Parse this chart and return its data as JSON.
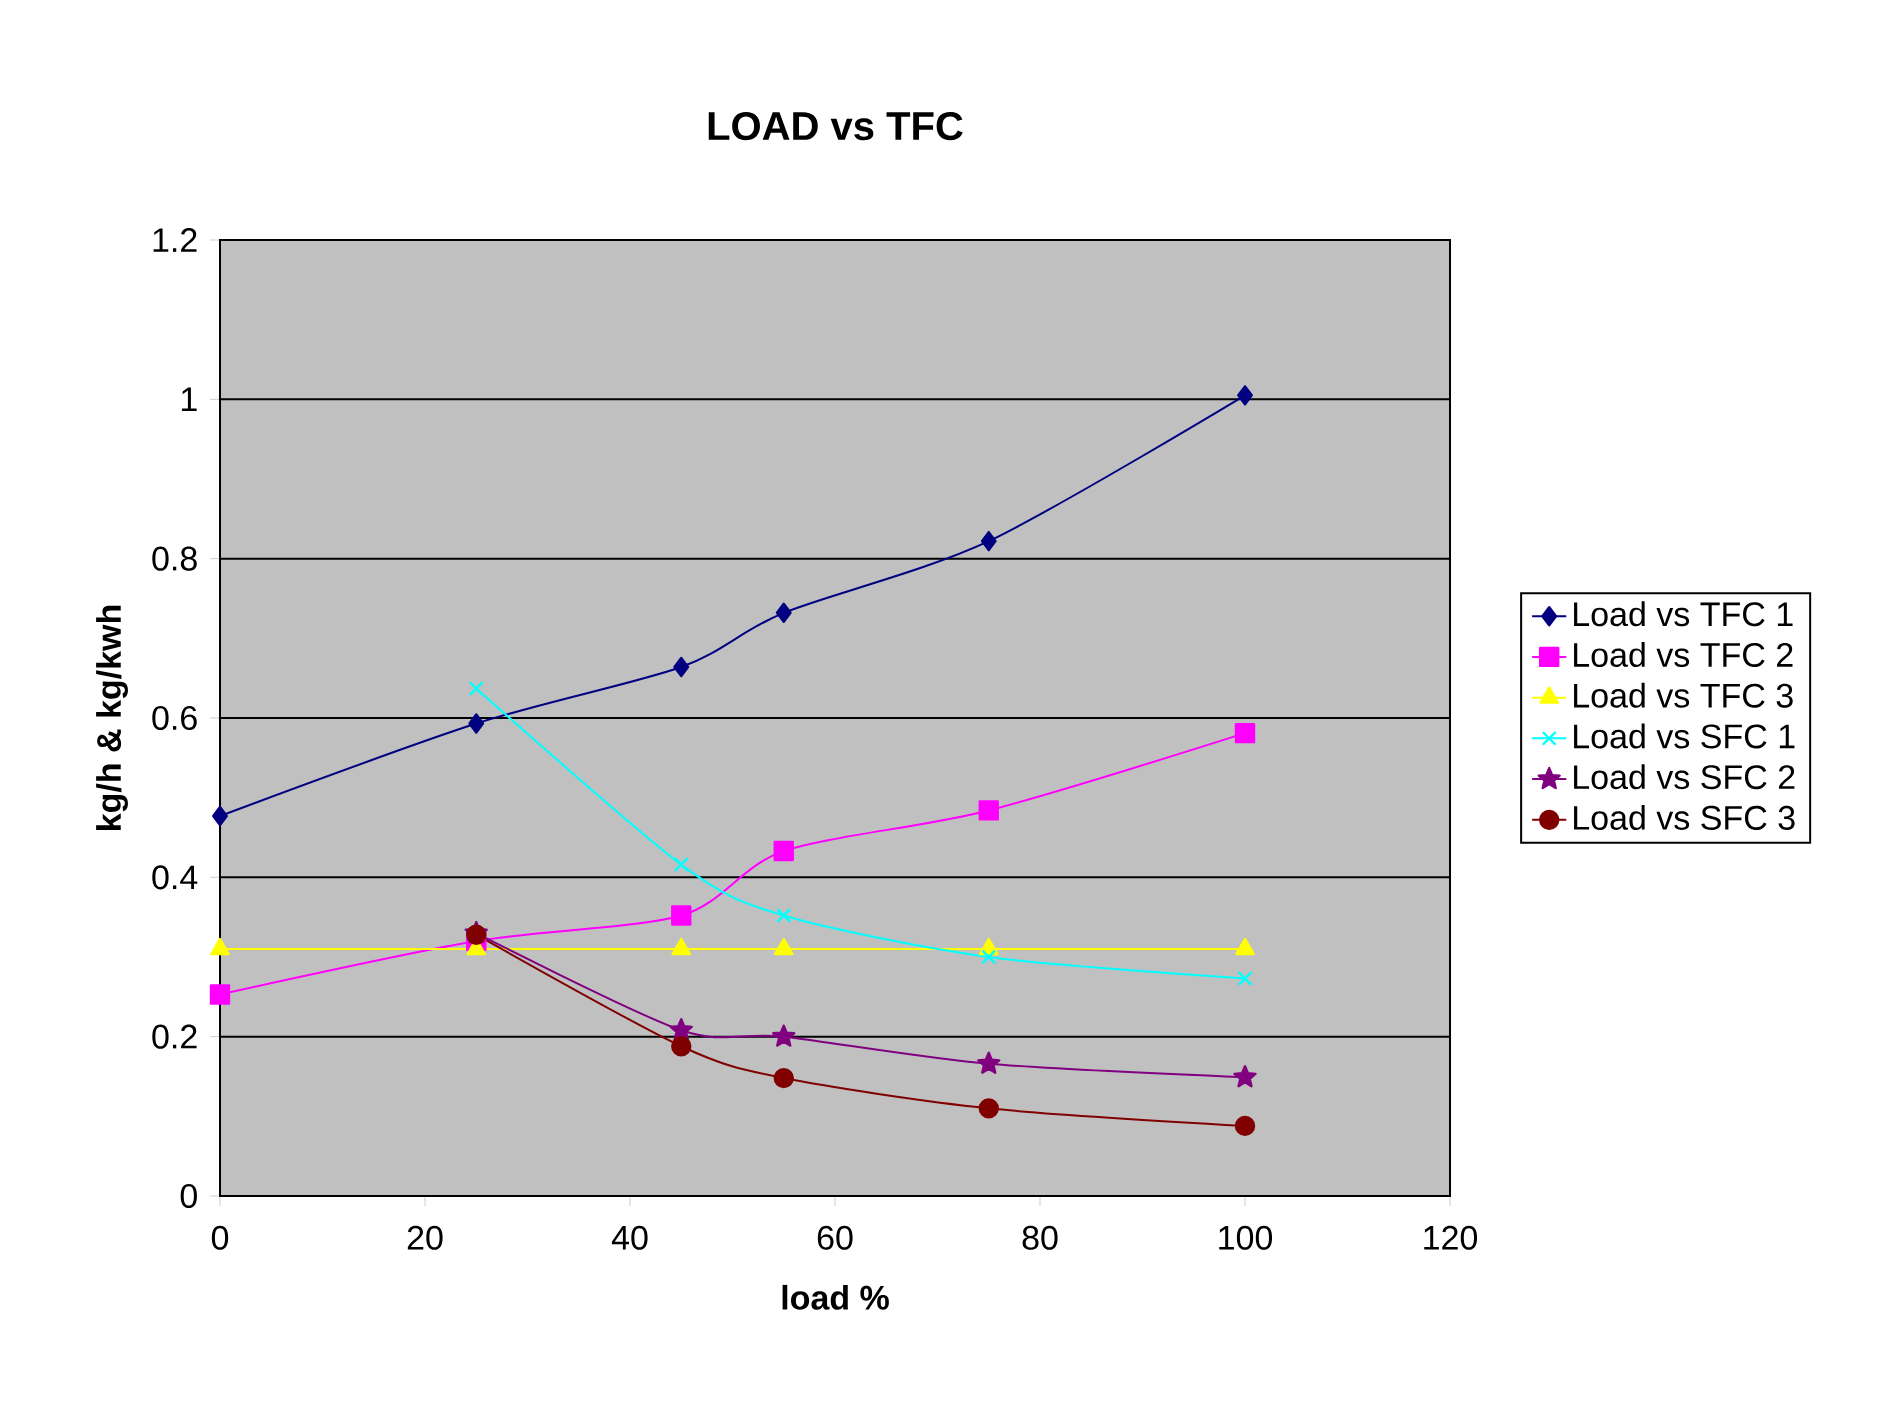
{
  "chart_data": {
    "type": "line",
    "title": "LOAD vs TFC",
    "xlabel": "load %",
    "ylabel": "kg/h & kg/kwh",
    "x": [
      0,
      25,
      45,
      55,
      75,
      100
    ],
    "series": [
      {
        "name": "Load vs TFC 1",
        "color": "#000080",
        "marker": "diamond",
        "values": [
          0.477,
          0.593,
          0.664,
          0.732,
          0.822,
          1.005
        ]
      },
      {
        "name": "Load vs TFC 2",
        "color": "#ff00ff",
        "marker": "square",
        "values": [
          0.253,
          0.32,
          0.352,
          0.433,
          0.484,
          0.581
        ]
      },
      {
        "name": "Load vs TFC 3",
        "color": "#ffff00",
        "marker": "triangle",
        "values": [
          0.31,
          0.31,
          0.31,
          0.31,
          0.31,
          0.31
        ]
      },
      {
        "name": "Load vs SFC 1",
        "color": "#00ffff",
        "marker": "cross",
        "x": [
          25,
          45,
          55,
          75,
          100
        ],
        "values": [
          0.637,
          0.416,
          0.352,
          0.3,
          0.273
        ]
      },
      {
        "name": "Load vs SFC 2",
        "color": "#800080",
        "marker": "star",
        "x": [
          25,
          45,
          55,
          75,
          100
        ],
        "values": [
          0.33,
          0.208,
          0.2,
          0.166,
          0.149
        ]
      },
      {
        "name": "Load vs SFC 3",
        "color": "#800000",
        "marker": "circle",
        "x": [
          25,
          45,
          55,
          75,
          100
        ],
        "values": [
          0.328,
          0.188,
          0.148,
          0.11,
          0.088
        ]
      }
    ],
    "xlim": [
      0,
      120
    ],
    "xticks": [
      0,
      20,
      40,
      60,
      80,
      100,
      120
    ],
    "ylim": [
      0,
      1.2
    ],
    "yticks": [
      0,
      0.2,
      0.4,
      0.6,
      0.8,
      1,
      1.2
    ],
    "grid": "y",
    "legend": "right",
    "line_style": "solid"
  }
}
